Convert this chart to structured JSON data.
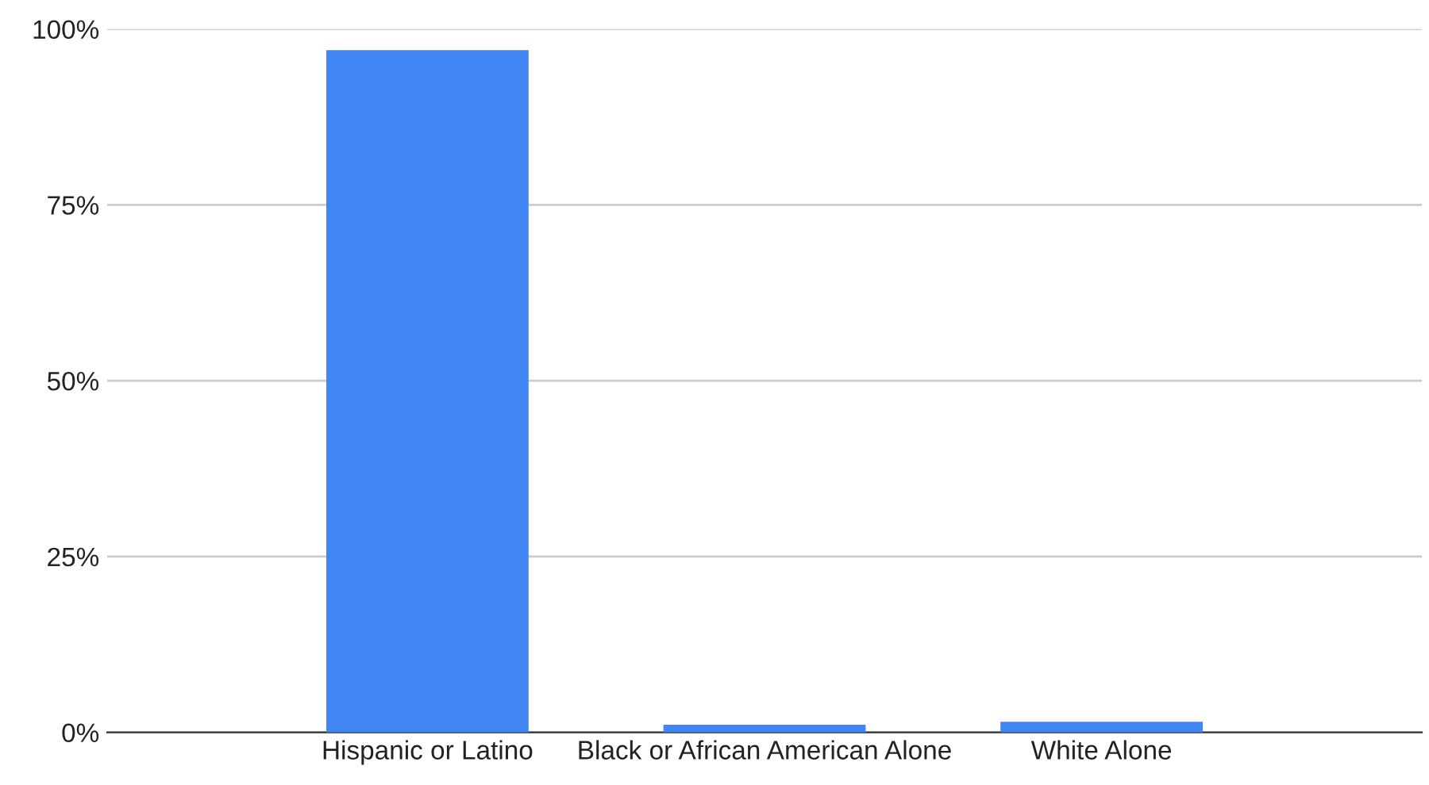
{
  "chart_data": {
    "type": "bar",
    "categories": [
      "Hispanic or Latino",
      "Black or African American Alone",
      "White Alone"
    ],
    "series": [
      {
        "color": "#4285f4",
        "values": [
          97.0,
          1.1,
          1.5
        ]
      }
    ],
    "ylim": [
      0,
      100
    ],
    "yticks": [
      {
        "value": 0,
        "label": "0%"
      },
      {
        "value": 25,
        "label": "25%"
      },
      {
        "value": 50,
        "label": "50%"
      },
      {
        "value": 75,
        "label": "75%"
      },
      {
        "value": 100,
        "label": "100%"
      }
    ],
    "grid": "y",
    "legend": false
  }
}
